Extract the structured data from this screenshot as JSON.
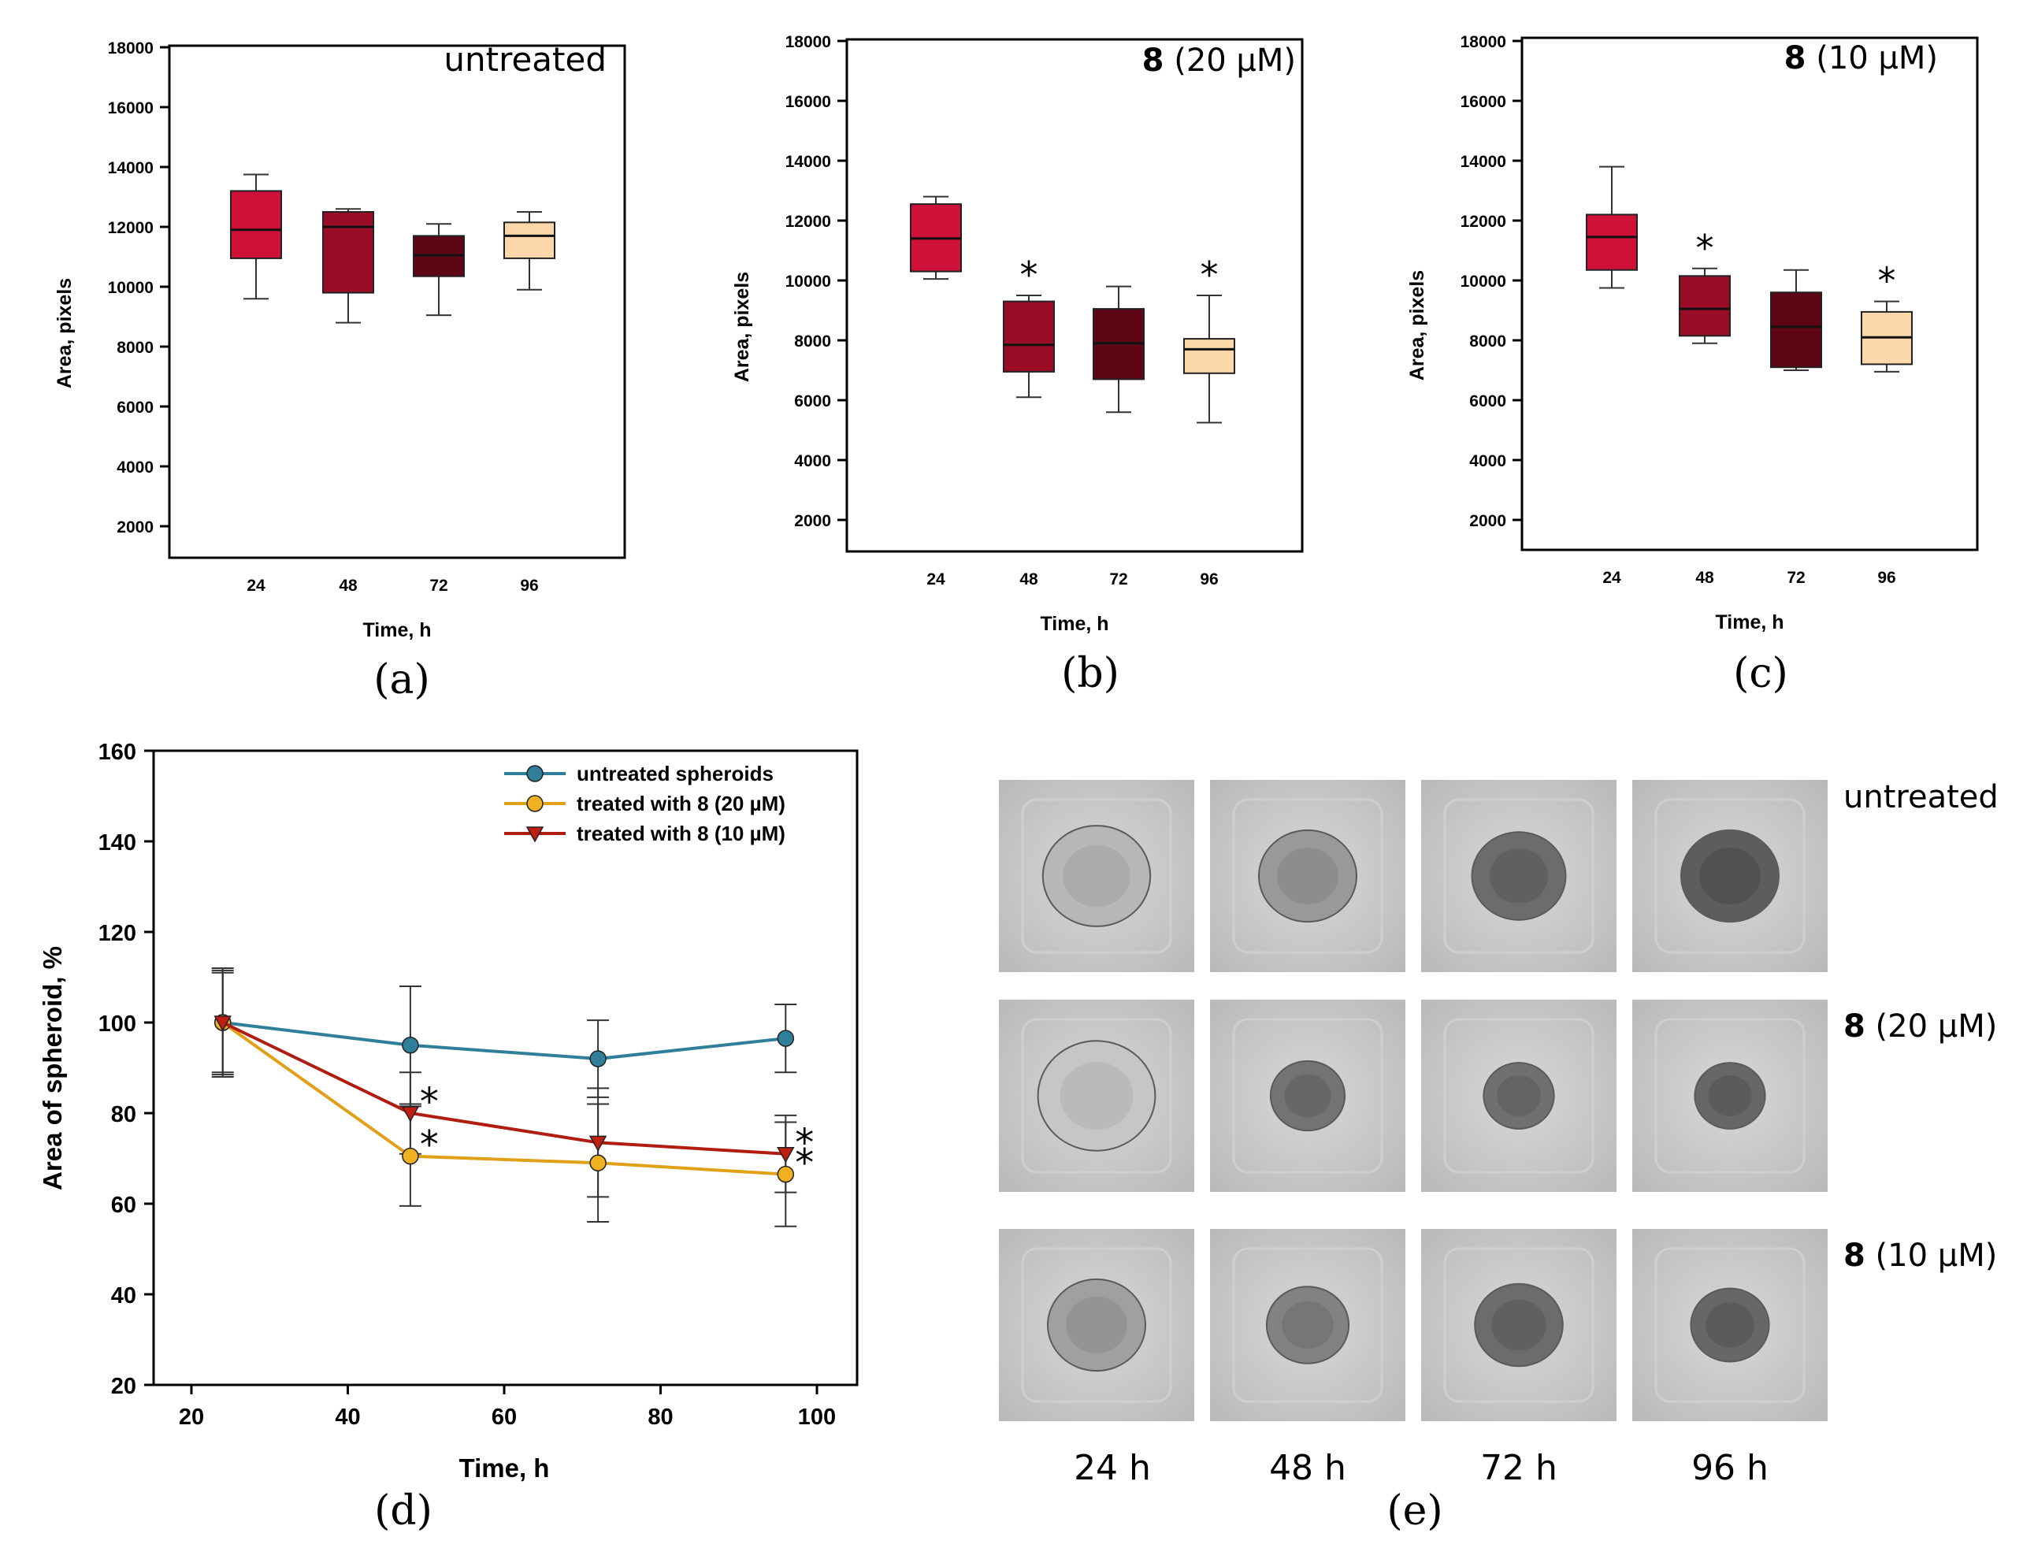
{
  "colors": {
    "box_24h": "#cf1038",
    "box_48h": "#9b0d27",
    "box_72h": "#5e0616",
    "box_96h": "#fbd7aa",
    "untreated_line": "#2f7f9b",
    "treated20_line": "#e0a018",
    "treated20_fill": "#f0b020",
    "treated10_line": "#b01c10",
    "treated10_fill": "#c01e10"
  },
  "chart_data": [
    {
      "id": "a",
      "type": "box",
      "panel_label": "(a)",
      "title": "untreated",
      "xlabel": "Time, h",
      "ylabel": "Area, pixels",
      "ylim": [
        1000,
        18000
      ],
      "yticks": [
        2000,
        4000,
        6000,
        8000,
        10000,
        12000,
        14000,
        16000,
        18000
      ],
      "categories": [
        "24",
        "48",
        "72",
        "96"
      ],
      "boxes": [
        {
          "whisker_low": 9600,
          "q1": 10950,
          "median": 11900,
          "q3": 13200,
          "whisker_high": 13750,
          "significant": false
        },
        {
          "whisker_low": 8800,
          "q1": 9800,
          "median": 12000,
          "q3": 12500,
          "whisker_high": 12600,
          "significant": false
        },
        {
          "whisker_low": 9050,
          "q1": 10350,
          "median": 11050,
          "q3": 11700,
          "whisker_high": 12100,
          "significant": false
        },
        {
          "whisker_low": 9900,
          "q1": 10950,
          "median": 11700,
          "q3": 12150,
          "whisker_high": 12500,
          "significant": false
        }
      ]
    },
    {
      "id": "b",
      "type": "box",
      "panel_label": "(b)",
      "title_bold": "8",
      "title_rest": " (20 μM)",
      "xlabel": "Time, h",
      "ylabel": "Area, pixels",
      "ylim": [
        800,
        18000
      ],
      "yticks": [
        2000,
        4000,
        6000,
        8000,
        10000,
        12000,
        14000,
        16000,
        18000
      ],
      "categories": [
        "24",
        "48",
        "72",
        "96"
      ],
      "boxes": [
        {
          "whisker_low": 10050,
          "q1": 10300,
          "median": 11400,
          "q3": 12550,
          "whisker_high": 12800,
          "significant": false
        },
        {
          "whisker_low": 6100,
          "q1": 6950,
          "median": 7850,
          "q3": 9300,
          "whisker_high": 9500,
          "significant": true
        },
        {
          "whisker_low": 5600,
          "q1": 6700,
          "median": 7900,
          "q3": 9050,
          "whisker_high": 9800,
          "significant": false
        },
        {
          "whisker_low": 5250,
          "q1": 6900,
          "median": 7700,
          "q3": 8050,
          "whisker_high": 9500,
          "significant": true
        }
      ]
    },
    {
      "id": "c",
      "type": "box",
      "panel_label": "(c)",
      "title_bold": "8",
      "title_rest": " (10 μM)",
      "xlabel": "Time, h",
      "ylabel": "Area, pixels",
      "ylim": [
        900,
        18000
      ],
      "yticks": [
        2000,
        4000,
        6000,
        8000,
        10000,
        12000,
        14000,
        16000,
        18000
      ],
      "categories": [
        "24",
        "48",
        "72",
        "96"
      ],
      "boxes": [
        {
          "whisker_low": 9750,
          "q1": 10350,
          "median": 11450,
          "q3": 12200,
          "whisker_high": 13800,
          "significant": false
        },
        {
          "whisker_low": 7900,
          "q1": 8150,
          "median": 9050,
          "q3": 10150,
          "whisker_high": 10400,
          "significant": true
        },
        {
          "whisker_low": 7000,
          "q1": 7100,
          "median": 8450,
          "q3": 9600,
          "whisker_high": 10350,
          "significant": false
        },
        {
          "whisker_low": 6950,
          "q1": 7200,
          "median": 8100,
          "q3": 8950,
          "whisker_high": 9300,
          "significant": true
        }
      ]
    },
    {
      "id": "d",
      "type": "line",
      "panel_label": "(d)",
      "xlabel": "Time, h",
      "ylabel": "Area of spheroid, %",
      "xlim": [
        15,
        105
      ],
      "ylim": [
        20,
        160
      ],
      "xticks": [
        20,
        40,
        60,
        80,
        100
      ],
      "yticks": [
        20,
        40,
        60,
        80,
        100,
        120,
        140,
        160
      ],
      "x": [
        24,
        48,
        72,
        96
      ],
      "series": [
        {
          "name": "untreated spheroids",
          "marker": "circle",
          "values": [
            100,
            95,
            92,
            96.5
          ],
          "err": [
            11,
            13,
            8.5,
            7.5
          ],
          "significant": [
            false,
            false,
            false,
            false
          ]
        },
        {
          "name": "treated with 8 (20 µM)",
          "marker": "circle",
          "values": [
            100,
            70.5,
            69,
            66.5
          ],
          "err": [
            12,
            11,
            13,
            11.5
          ],
          "significant": [
            false,
            true,
            false,
            true
          ]
        },
        {
          "name": "treated with 8 (10 µM)",
          "marker": "triangle-down",
          "values": [
            100,
            80,
            73.5,
            71
          ],
          "err": [
            11.5,
            9,
            12,
            8.5
          ],
          "significant": [
            false,
            true,
            false,
            true
          ]
        }
      ]
    }
  ],
  "panel_e": {
    "panel_label": "(e)",
    "columns": [
      "24 h",
      "48 h",
      "72 h",
      "96 h"
    ],
    "rows": [
      {
        "label_plain": "untreated",
        "label_bold": "",
        "label_rest": "",
        "spheroid_darkness": [
          0.25,
          0.45,
          0.75,
          0.85
        ],
        "spheroid_size": [
          0.55,
          0.5,
          0.48,
          0.5
        ]
      },
      {
        "label_plain": "",
        "label_bold": "8",
        "label_rest": " (20 μM)",
        "spheroid_darkness": [
          0.15,
          0.7,
          0.72,
          0.78
        ],
        "spheroid_size": [
          0.6,
          0.38,
          0.36,
          0.36
        ]
      },
      {
        "label_plain": "",
        "label_bold": "8",
        "label_rest": " (10 μM)",
        "spheroid_darkness": [
          0.4,
          0.6,
          0.75,
          0.78
        ],
        "spheroid_size": [
          0.5,
          0.42,
          0.45,
          0.4
        ]
      }
    ]
  },
  "significance_marker": "*"
}
